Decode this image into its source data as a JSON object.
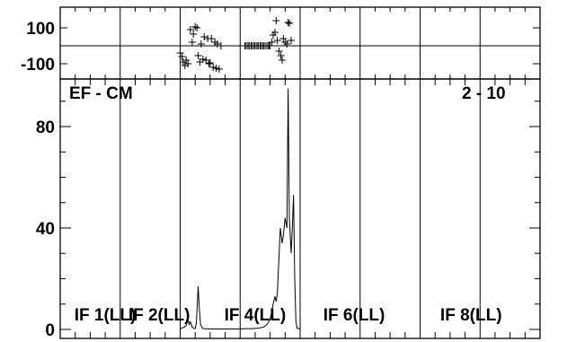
{
  "chart_data": [
    {
      "type": "scatter",
      "panel": "phase",
      "ylim": [
        -150,
        150
      ],
      "yticks": [
        100,
        -100
      ],
      "ytick_labels": [
        "100",
        "-100"
      ],
      "zero_line": true,
      "series": [
        {
          "marker": "+",
          "points": [
            [
              2.0,
              -40
            ],
            [
              2.03,
              -60
            ],
            [
              2.05,
              -90
            ],
            [
              2.08,
              -110
            ],
            [
              2.1,
              -80
            ],
            [
              2.13,
              -100
            ],
            [
              2.17,
              90
            ],
            [
              2.2,
              20
            ],
            [
              2.22,
              65
            ],
            [
              2.25,
              105
            ],
            [
              2.28,
              100
            ],
            [
              2.3,
              -55
            ],
            [
              2.33,
              -90
            ],
            [
              2.35,
              10
            ],
            [
              2.38,
              -75
            ],
            [
              2.4,
              50
            ],
            [
              2.43,
              -80
            ],
            [
              2.46,
              40
            ],
            [
              2.48,
              -100
            ],
            [
              2.5,
              -95
            ],
            [
              2.52,
              40
            ],
            [
              2.55,
              -120
            ],
            [
              2.58,
              20
            ],
            [
              2.6,
              -125
            ],
            [
              2.62,
              10
            ],
            [
              2.65,
              -130
            ],
            [
              2.68,
              0
            ],
            [
              3.08,
              0
            ],
            [
              3.1,
              0
            ],
            [
              3.13,
              0
            ],
            [
              3.15,
              0
            ],
            [
              3.18,
              0
            ],
            [
              3.2,
              0
            ],
            [
              3.23,
              0
            ],
            [
              3.25,
              0
            ],
            [
              3.28,
              0
            ],
            [
              3.3,
              0
            ],
            [
              3.33,
              0
            ],
            [
              3.35,
              0
            ],
            [
              3.38,
              0
            ],
            [
              3.4,
              0
            ],
            [
              3.43,
              0
            ],
            [
              3.46,
              0
            ],
            [
              3.48,
              0
            ],
            [
              3.5,
              0
            ],
            [
              3.53,
              20
            ],
            [
              3.55,
              60
            ],
            [
              3.58,
              75
            ],
            [
              3.6,
              140
            ],
            [
              3.62,
              30
            ],
            [
              3.65,
              -30
            ],
            [
              3.68,
              -55
            ],
            [
              3.7,
              -80
            ],
            [
              3.72,
              40
            ],
            [
              3.75,
              20
            ],
            [
              3.78,
              10
            ],
            [
              3.8,
              130
            ],
            [
              3.82,
              125
            ],
            [
              3.85,
              30
            ]
          ]
        }
      ]
    },
    {
      "type": "line",
      "panel": "amplitude",
      "annotation_left": "EF - CM",
      "annotation_right": "2 - 10",
      "ylim": [
        0,
        100
      ],
      "yticks": [
        0,
        40,
        80
      ],
      "ytick_labels": [
        "0",
        "40",
        "80"
      ],
      "if_labels": [
        "IF 1(LL)",
        "IF 2(LL)",
        "IF 4(LL)",
        "IF 6(LL)",
        "IF 8(LL)"
      ],
      "series": [
        {
          "points": [
            [
              2.0,
              0.3
            ],
            [
              2.03,
              0.5
            ],
            [
              2.07,
              1.0
            ],
            [
              2.1,
              1.5
            ],
            [
              2.13,
              4.0
            ],
            [
              2.15,
              2.0
            ],
            [
              2.17,
              3.0
            ],
            [
              2.2,
              1.0
            ],
            [
              2.22,
              0.5
            ],
            [
              2.25,
              0.3
            ],
            [
              2.27,
              2.5
            ],
            [
              2.3,
              17.0
            ],
            [
              2.32,
              8.0
            ],
            [
              2.34,
              2.0
            ],
            [
              2.37,
              0.5
            ],
            [
              2.4,
              0.3
            ],
            [
              2.5,
              0.2
            ],
            [
              2.6,
              0.2
            ],
            [
              2.75,
              0.2
            ],
            [
              2.9,
              0.2
            ],
            [
              3.0,
              0.2
            ],
            [
              3.1,
              0.3
            ],
            [
              3.2,
              0.3
            ],
            [
              3.3,
              0.5
            ],
            [
              3.4,
              1.0
            ],
            [
              3.45,
              2.0
            ],
            [
              3.5,
              4.0
            ],
            [
              3.55,
              10.0
            ],
            [
              3.58,
              13.0
            ],
            [
              3.6,
              11.0
            ],
            [
              3.62,
              14.0
            ],
            [
              3.65,
              30.0
            ],
            [
              3.67,
              40.0
            ],
            [
              3.7,
              34.0
            ],
            [
              3.72,
              37.0
            ],
            [
              3.75,
              44.0
            ],
            [
              3.78,
              40.0
            ],
            [
              3.8,
              95.0
            ],
            [
              3.82,
              44.0
            ],
            [
              3.85,
              30.0
            ],
            [
              3.87,
              40.0
            ],
            [
              3.89,
              53.0
            ],
            [
              3.91,
              20.0
            ],
            [
              3.93,
              3.0
            ],
            [
              3.95,
              0.5
            ],
            [
              4.0,
              0.2
            ]
          ]
        }
      ]
    }
  ]
}
